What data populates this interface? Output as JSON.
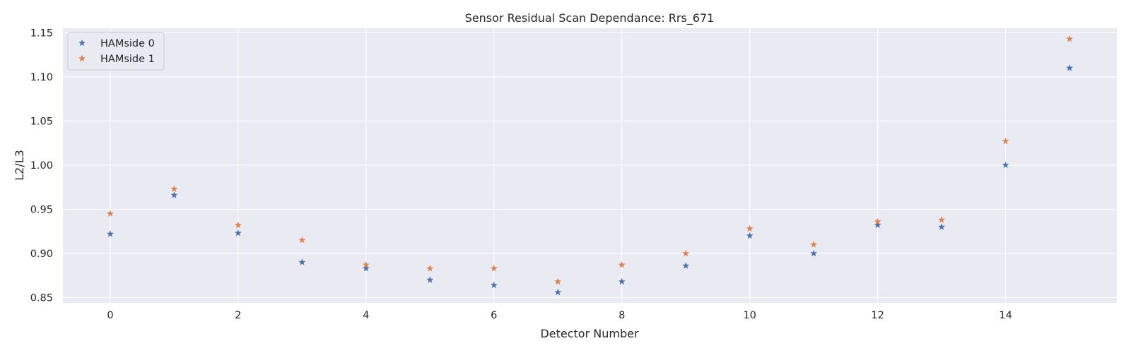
{
  "chart_data": {
    "type": "scatter",
    "title": "Sensor Residual Scan Dependance: Rrs_671",
    "xlabel": "Detector Number",
    "ylabel": "L2/L3",
    "xlim": [
      -0.74,
      15.74
    ],
    "ylim": [
      0.844,
      1.155
    ],
    "xticks": [
      0,
      2,
      4,
      6,
      8,
      10,
      12,
      14
    ],
    "yticks": [
      0.85,
      0.9,
      0.95,
      1.0,
      1.05,
      1.1,
      1.15
    ],
    "ytick_labels": [
      "0.85",
      "0.90",
      "0.95",
      "1.00",
      "1.05",
      "1.10",
      "1.15"
    ],
    "grid": true,
    "legend_position": "upper-left",
    "marker": "star",
    "x": [
      0,
      1,
      2,
      3,
      4,
      5,
      6,
      7,
      8,
      9,
      10,
      11,
      12,
      13,
      14,
      15
    ],
    "series": [
      {
        "name": "HAMside 0",
        "color": "#4c72b0",
        "values": [
          0.922,
          0.966,
          0.923,
          0.89,
          0.883,
          0.87,
          0.864,
          0.856,
          0.868,
          0.886,
          0.92,
          0.9,
          0.932,
          0.93,
          1.0,
          1.11
        ]
      },
      {
        "name": "HAMside 1",
        "color": "#dd8452",
        "values": [
          0.945,
          0.973,
          0.932,
          0.915,
          0.887,
          0.883,
          0.883,
          0.868,
          0.887,
          0.9,
          0.928,
          0.91,
          0.936,
          0.938,
          1.027,
          1.143
        ]
      }
    ],
    "colors": {
      "plot_background": "#eaeaf2",
      "grid": "#ffffff"
    }
  }
}
